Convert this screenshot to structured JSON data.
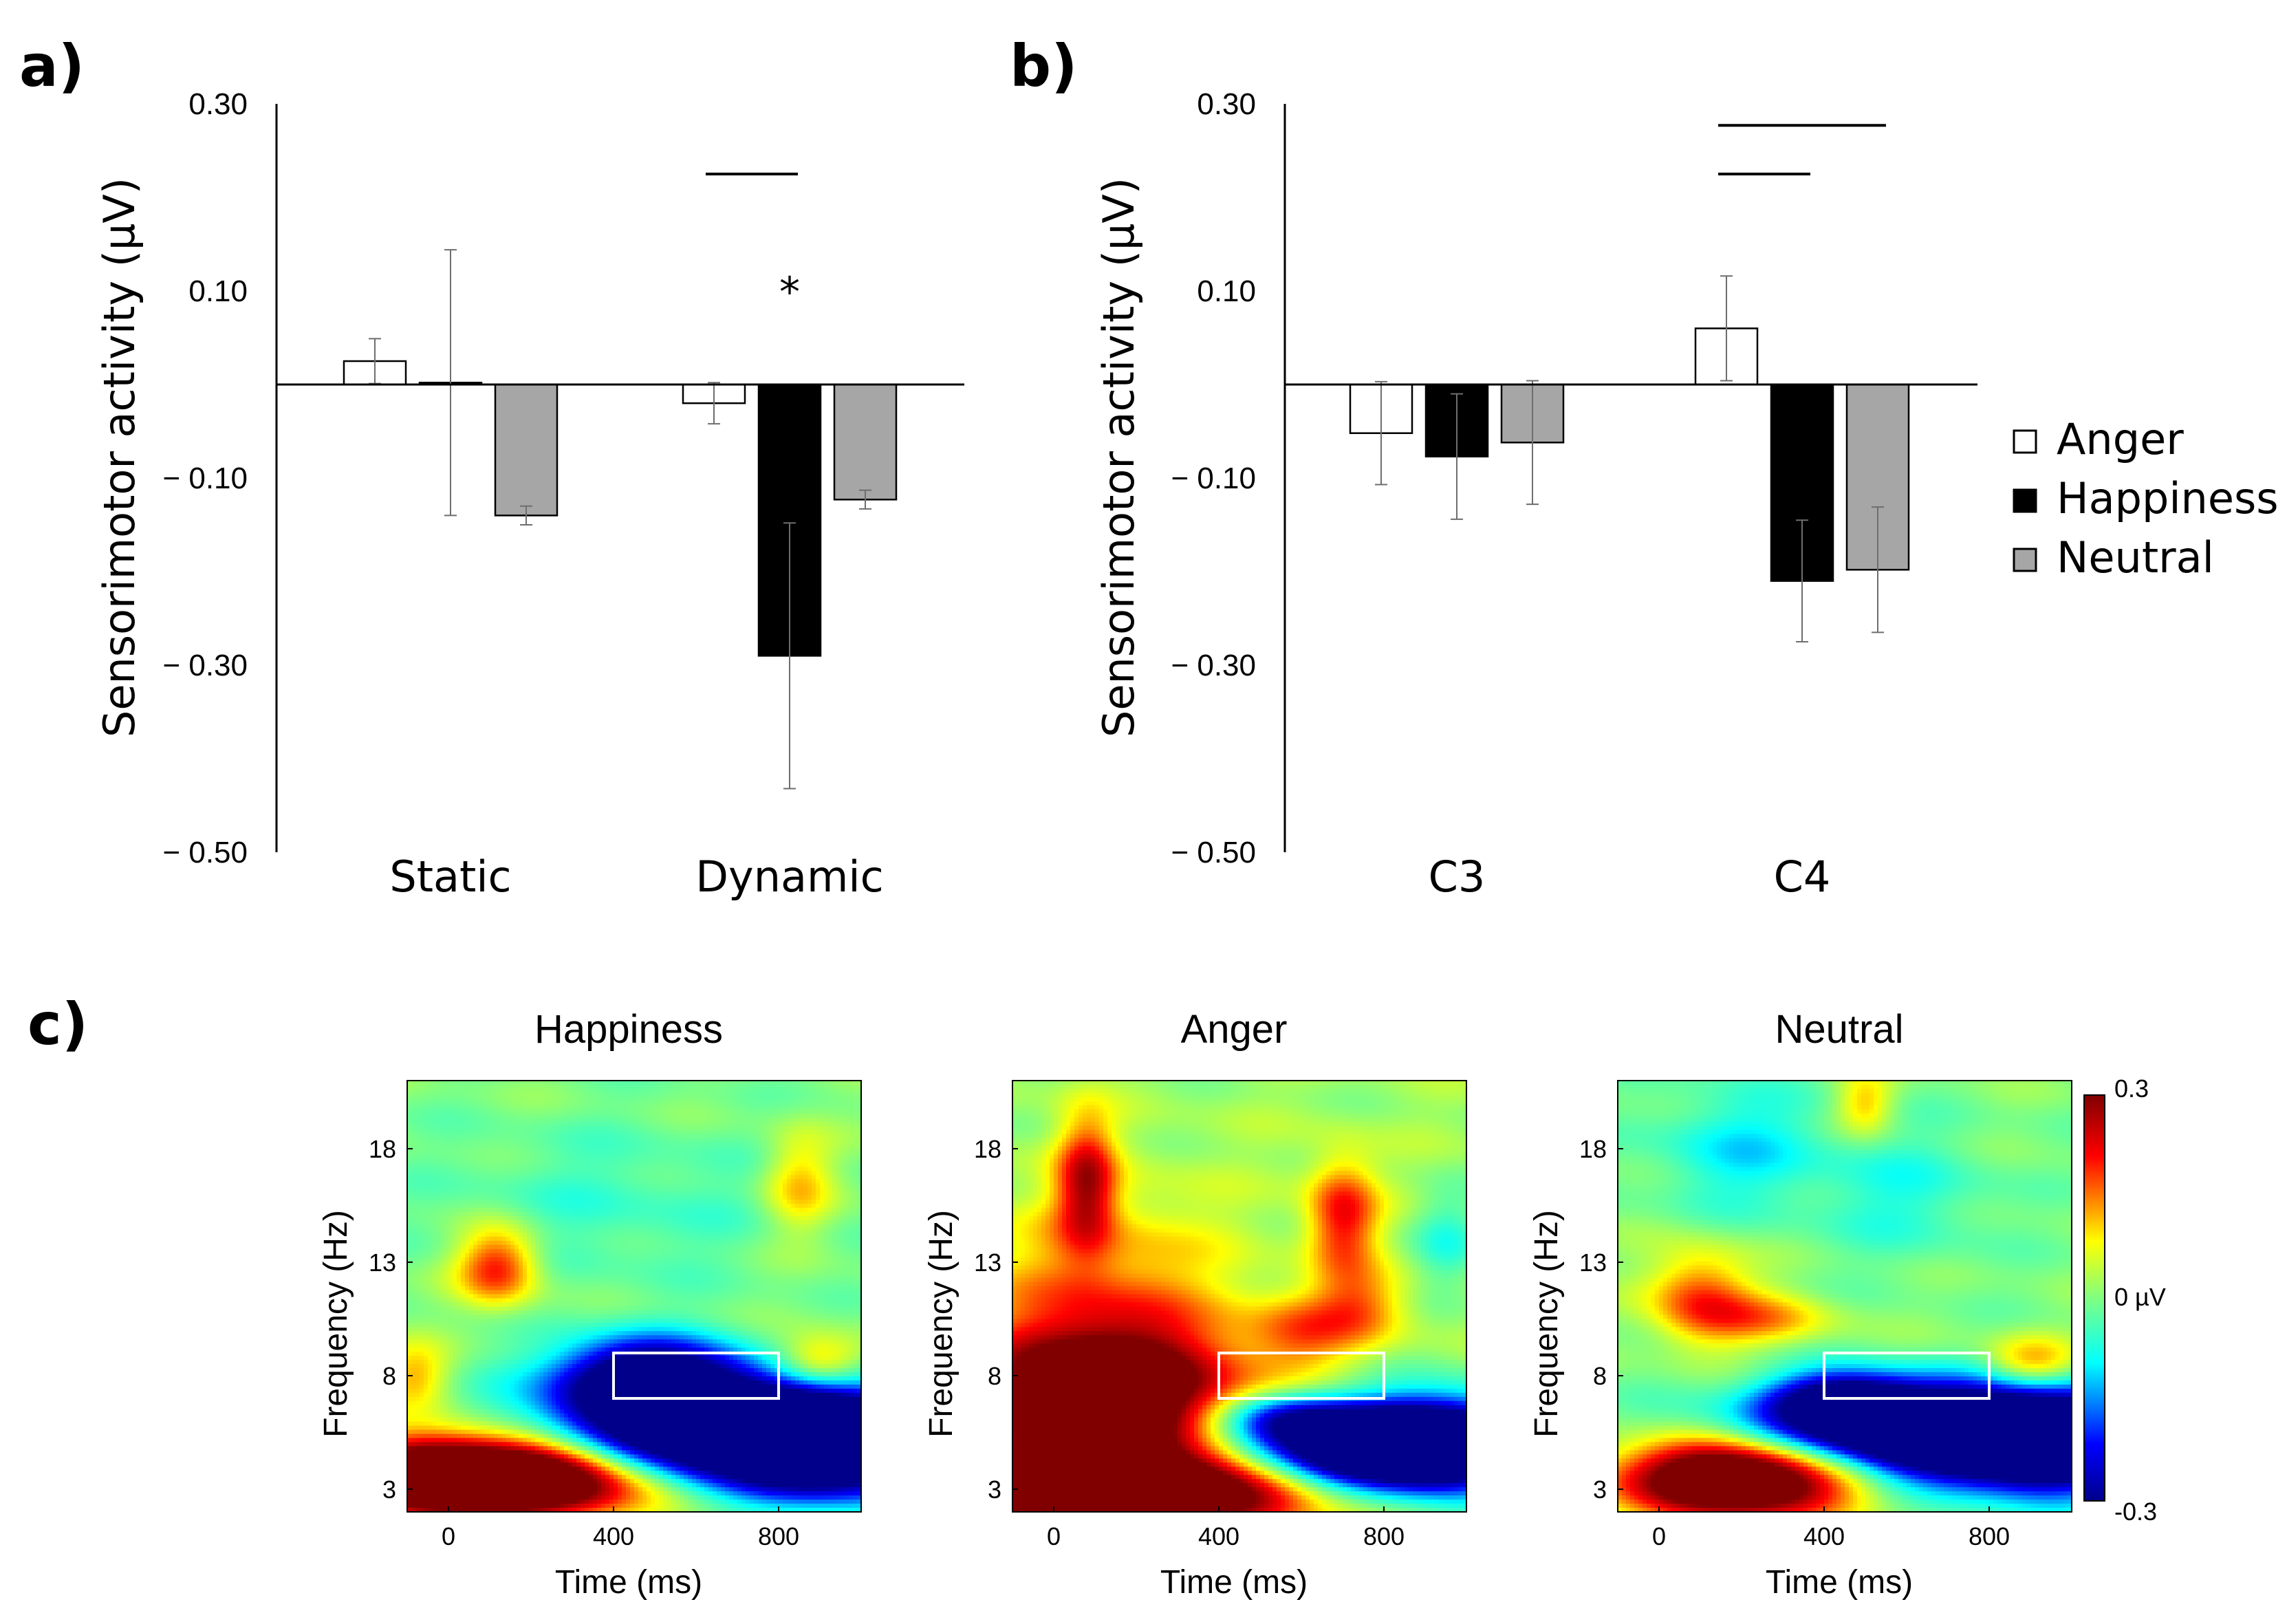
{
  "colors": {
    "anger": "#ffffff",
    "happiness": "#000000",
    "neutral": "#a6a6a6",
    "error_bar": "#6e6e6e",
    "roi_box": "#ffffff"
  },
  "legend": {
    "items": [
      {
        "name": "Anger",
        "color": "#ffffff"
      },
      {
        "name": "Happiness",
        "color": "#000000"
      },
      {
        "name": "Neutral",
        "color": "#a6a6a6"
      }
    ]
  },
  "chart_data": [
    {
      "panel": "a)",
      "type": "bar",
      "ylabel": "Sensorimotor activity (µV)",
      "ylim": [
        -0.5,
        0.3
      ],
      "yticks": [
        0.3,
        0.1,
        -0.1,
        -0.3,
        -0.5
      ],
      "ytick_labels": [
        "0.30",
        "0.10",
        "− 0.10",
        "− 0.30",
        "− 0.50"
      ],
      "categories": [
        "Static",
        "Dynamic"
      ],
      "series": [
        {
          "name": "Anger",
          "values": [
            0.025,
            -0.02
          ],
          "errors": [
            0.024,
            0.022
          ]
        },
        {
          "name": "Happiness",
          "values": [
            0.002,
            -0.29
          ],
          "errors": [
            0.142,
            0.142
          ]
        },
        {
          "name": "Neutral",
          "values": [
            -0.14,
            -0.123
          ],
          "errors": [
            0.01,
            0.01
          ]
        }
      ],
      "annotations": {
        "significance_marker": "*"
      },
      "significance_bars": [
        {
          "category": "Dynamic",
          "from_series": 0,
          "to_series": 1,
          "y": 0.225
        }
      ]
    },
    {
      "panel": "b)",
      "type": "bar",
      "ylabel": "Sensorimotor activity (µV)",
      "ylim": [
        -0.5,
        0.3
      ],
      "yticks": [
        0.3,
        0.1,
        -0.1,
        -0.3,
        -0.5
      ],
      "ytick_labels": [
        "0.30",
        "0.10",
        "− 0.10",
        "− 0.30",
        "− 0.50"
      ],
      "categories": [
        "C3",
        "C4"
      ],
      "series": [
        {
          "name": "Anger",
          "values": [
            -0.052,
            0.06
          ],
          "errors": [
            0.055,
            0.056
          ]
        },
        {
          "name": "Happiness",
          "values": [
            -0.077,
            -0.21
          ],
          "errors": [
            0.067,
            0.065
          ]
        },
        {
          "name": "Neutral",
          "values": [
            -0.062,
            -0.198
          ],
          "errors": [
            0.066,
            0.067
          ]
        }
      ],
      "significance_bars": [
        {
          "category": "C4",
          "from_series": 0,
          "to_series": 2,
          "y": 0.277
        },
        {
          "category": "C4",
          "from_series": 0,
          "to_series": 1,
          "y": 0.225
        }
      ]
    },
    {
      "panel": "c)",
      "type": "heatmap",
      "xlabel": "Time (ms)",
      "ylabel": "Frequency (Hz)",
      "xlim": [
        -100,
        1000
      ],
      "ylim": [
        2,
        21
      ],
      "xticks": [
        0,
        400,
        800
      ],
      "yticks": [
        3,
        8,
        13,
        18
      ],
      "roi": {
        "time": [
          400,
          800
        ],
        "freq": [
          7,
          9
        ]
      },
      "colorbar": {
        "min": -0.3,
        "max": 0.3,
        "labels": [
          "0.3",
          "0 µV",
          "-0.3"
        ]
      },
      "maps": [
        {
          "title": "Happiness",
          "background": 0.0,
          "blobs": [
            {
              "t": 200,
              "f": 3.5,
              "st": 220,
              "sf": 1.2,
              "a": 0.55
            },
            {
              "t": -60,
              "f": 3.5,
              "st": 140,
              "sf": 1.3,
              "a": 0.3
            },
            {
              "t": 650,
              "f": 5.5,
              "st": 260,
              "sf": 1.6,
              "a": -0.6
            },
            {
              "t": 950,
              "f": 5,
              "st": 150,
              "sf": 1.6,
              "a": -0.4
            },
            {
              "t": 480,
              "f": 8,
              "st": 160,
              "sf": 1.2,
              "a": -0.35
            },
            {
              "t": 120,
              "f": 12.8,
              "st": 70,
              "sf": 1.2,
              "a": 0.22
            },
            {
              "t": 900,
              "f": 8.5,
              "st": 80,
              "sf": 0.9,
              "a": 0.18
            },
            {
              "t": -80,
              "f": 8,
              "st": 60,
              "sf": 1.0,
              "a": 0.12
            },
            {
              "t": 850,
              "f": 16.5,
              "st": 60,
              "sf": 1.6,
              "a": 0.12
            },
            {
              "t": 400,
              "f": 15.5,
              "st": 300,
              "sf": 2.5,
              "a": -0.05
            }
          ]
        },
        {
          "title": "Anger",
          "background": 0.02,
          "blobs": [
            {
              "t": 150,
              "f": 3,
              "st": 320,
              "sf": 1.2,
              "a": 0.55
            },
            {
              "t": 120,
              "f": 7,
              "st": 230,
              "sf": 2.2,
              "a": 0.45
            },
            {
              "t": 120,
              "f": 12,
              "st": 200,
              "sf": 3,
              "a": 0.12
            },
            {
              "t": 80,
              "f": 16.5,
              "st": 50,
              "sf": 2,
              "a": 0.22
            },
            {
              "t": 750,
              "f": 4.8,
              "st": 220,
              "sf": 1.2,
              "a": -0.55
            },
            {
              "t": 950,
              "f": 5,
              "st": 150,
              "sf": 1.5,
              "a": -0.35
            },
            {
              "t": 560,
              "f": 6.2,
              "st": 120,
              "sf": 0.8,
              "a": -0.2
            },
            {
              "t": 700,
              "f": 15,
              "st": 60,
              "sf": 1.8,
              "a": 0.2
            },
            {
              "t": 600,
              "f": 10,
              "st": 90,
              "sf": 1.2,
              "a": 0.12
            },
            {
              "t": 750,
              "f": 11,
              "st": 80,
              "sf": 1.2,
              "a": 0.12
            },
            {
              "t": 950,
              "f": 14,
              "st": 60,
              "sf": 1.5,
              "a": -0.08
            }
          ]
        },
        {
          "title": "Neutral",
          "background": 0.0,
          "blobs": [
            {
              "t": 200,
              "f": 3.5,
              "st": 200,
              "sf": 1.2,
              "a": 0.55
            },
            {
              "t": 650,
              "f": 5.5,
              "st": 280,
              "sf": 1.4,
              "a": -0.6
            },
            {
              "t": 950,
              "f": 5,
              "st": 150,
              "sf": 1.5,
              "a": -0.4
            },
            {
              "t": 450,
              "f": 7,
              "st": 120,
              "sf": 0.8,
              "a": -0.25
            },
            {
              "t": 100,
              "f": 11.5,
              "st": 90,
              "sf": 1.5,
              "a": 0.18
            },
            {
              "t": 260,
              "f": 10.5,
              "st": 120,
              "sf": 0.8,
              "a": 0.12
            },
            {
              "t": 900,
              "f": 8.5,
              "st": 80,
              "sf": 0.9,
              "a": 0.15
            },
            {
              "t": 200,
              "f": 18,
              "st": 150,
              "sf": 2,
              "a": -0.1
            },
            {
              "t": 600,
              "f": 16,
              "st": 150,
              "sf": 2,
              "a": -0.07
            },
            {
              "t": 500,
              "f": 20,
              "st": 50,
              "sf": 1,
              "a": 0.12
            }
          ]
        }
      ]
    }
  ]
}
